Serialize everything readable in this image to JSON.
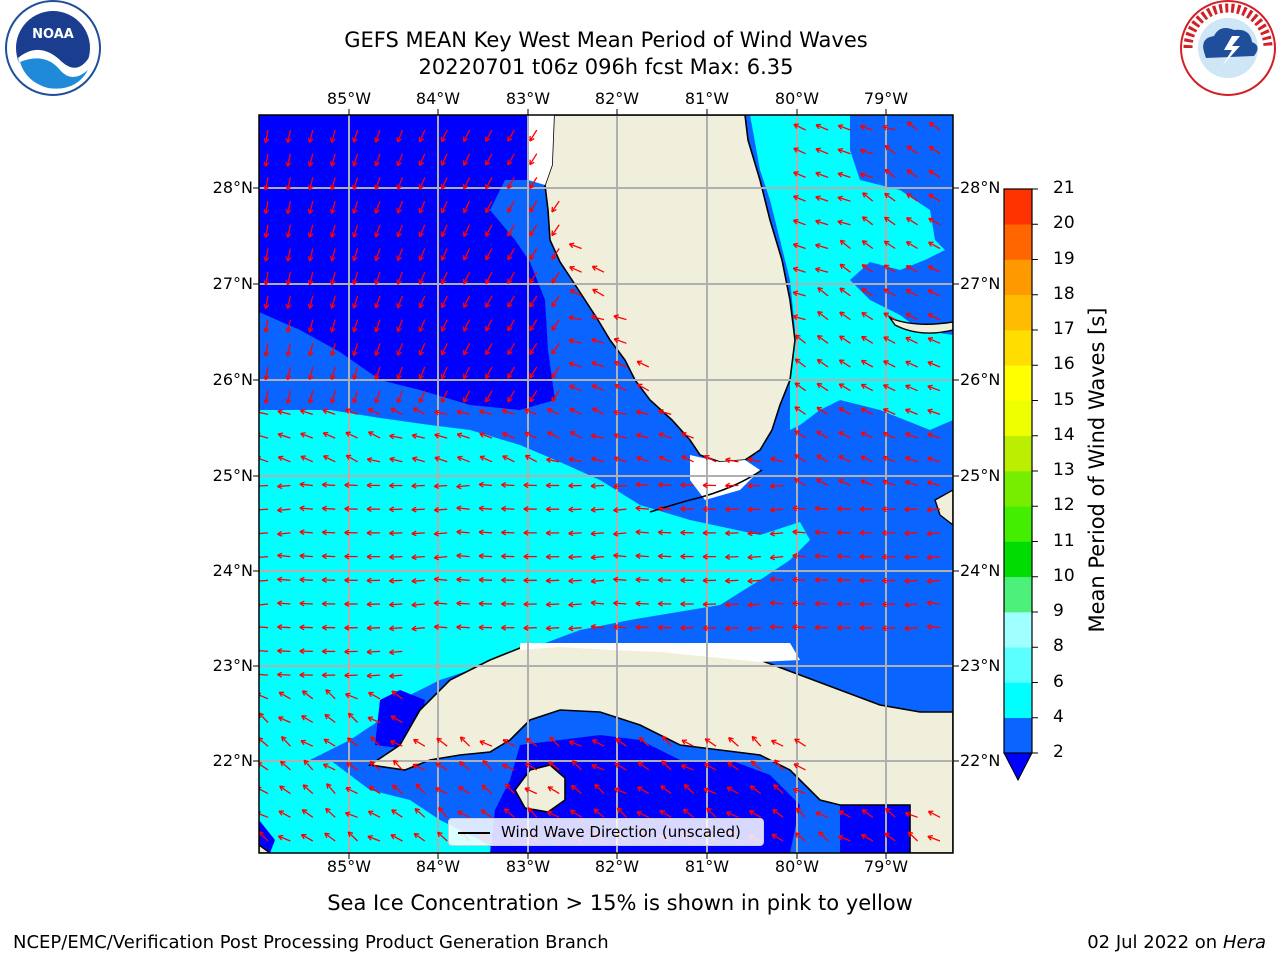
{
  "title": {
    "line1": "GEFS MEAN Key West Mean Period of Wind Waves",
    "line2": "20220701 t06z 096h fcst   Max: 6.35"
  },
  "map": {
    "lon_labels": [
      "85°W",
      "84°W",
      "83°W",
      "82°W",
      "81°W",
      "80°W",
      "79°W"
    ],
    "lat_labels": [
      "28°N",
      "27°N",
      "26°N",
      "25°N",
      "24°N",
      "23°N",
      "22°N"
    ],
    "legend_label": "Wind Wave Direction (unscaled)",
    "arrow_color": "#ff0000",
    "land_color": "#efefdb",
    "colors": {
      "period_2_4": "#0a64ff",
      "period_4_6": "#00ffff",
      "below_2": "#0000ff"
    }
  },
  "colorbar": {
    "label": "Mean Period of Wind Waves [s]",
    "ticks": [
      "2",
      "4",
      "6",
      "8",
      "9",
      "10",
      "11",
      "12",
      "13",
      "14",
      "15",
      "16",
      "17",
      "18",
      "19",
      "20",
      "21"
    ],
    "colors": [
      "#0a64ff",
      "#00ffff",
      "#5cffff",
      "#a0ffff",
      "#4cf07a",
      "#00dd00",
      "#44ee00",
      "#77ee00",
      "#bbee00",
      "#eeff00",
      "#ffff00",
      "#ffdd00",
      "#ffbb00",
      "#ff9900",
      "#ff6600",
      "#ff3300"
    ],
    "extend_color": "#0000ff"
  },
  "footer": {
    "sea_ice_note": "Sea Ice Concentration > 15% is shown in pink to yellow",
    "credit": "NCEP/EMC/Verification Post Processing Product Generation Branch",
    "date": "02 Jul 2022 on",
    "machine": "Hera"
  },
  "logos": {
    "left": "NOAA",
    "right": "NATIONAL WEATHER SERVICE"
  }
}
